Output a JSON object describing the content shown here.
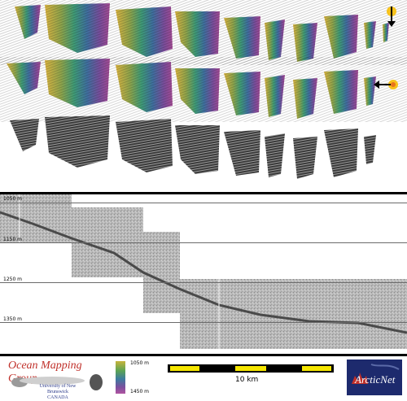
{
  "profile": {
    "depth_labels": [
      "1050 m",
      "1150 m",
      "1250 m",
      "1350 m"
    ]
  },
  "footer": {
    "logo_title": "Ocean Mapping Group",
    "logo_line1": "University of New Brunswick",
    "logo_line2": "CANADA",
    "colorbar_top": "1050 m",
    "colorbar_bottom": "1450 m",
    "scalebar_label": "10 km",
    "partner_logo": "ArcticNet"
  },
  "colors": {
    "scalebar_yellow": "#f5e600",
    "logo_red": "#c0302a",
    "logo_blue": "#2b3a8a",
    "arcticnet_bg": "#1d2a6d"
  },
  "icons": [
    "north-arrow-icon",
    "sun-illumination-icon",
    "tree-silhouette-icon",
    "maple-leaf-icon"
  ]
}
